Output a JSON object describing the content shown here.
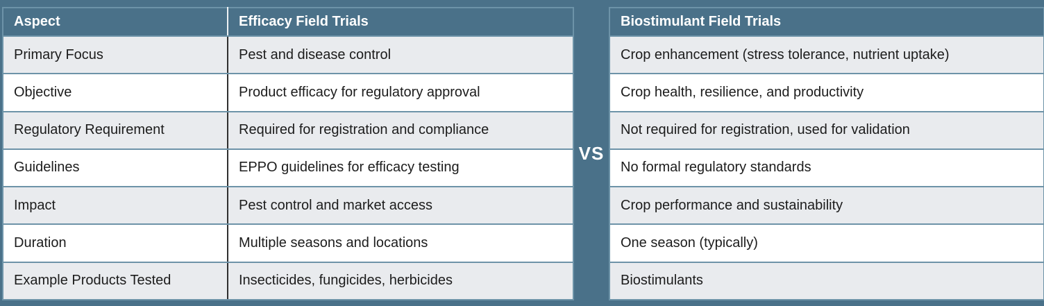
{
  "theme": {
    "header_bg": "#4A7189",
    "row_alt_bg": "#E9EBEE",
    "row_bg": "#FFFFFF",
    "border_color": "#6D93A8",
    "divider_line": "#2F2F2F",
    "header_text": "#FFFFFF",
    "body_text": "#1C1C1C"
  },
  "divider": {
    "label": "VS"
  },
  "left_table": {
    "headers": {
      "aspect": "Aspect",
      "efficacy": "Efficacy Field Trials"
    },
    "rows": [
      {
        "aspect": "Primary Focus",
        "efficacy": "Pest and disease control"
      },
      {
        "aspect": "Objective",
        "efficacy": "Product efficacy for regulatory approval"
      },
      {
        "aspect": "Regulatory Requirement",
        "efficacy": "Required for registration and compliance"
      },
      {
        "aspect": "Guidelines",
        "efficacy": "EPPO guidelines for efficacy testing"
      },
      {
        "aspect": "Impact",
        "efficacy": "Pest control and market access"
      },
      {
        "aspect": "Duration",
        "efficacy": "Multiple seasons and locations"
      },
      {
        "aspect": "Example Products Tested",
        "efficacy": "Insecticides, fungicides, herbicides"
      }
    ]
  },
  "right_table": {
    "header": "Biostimulant Field Trials",
    "rows": [
      "Crop enhancement (stress tolerance, nutrient uptake)",
      "Crop health, resilience, and productivity",
      "Not required for registration, used for validation",
      "No formal regulatory standards",
      "Crop performance and sustainability",
      "One season (typically)",
      "Biostimulants"
    ]
  }
}
